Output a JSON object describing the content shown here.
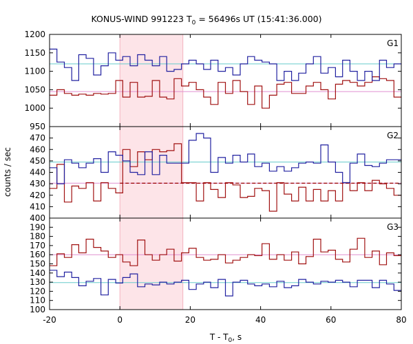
{
  "title": {
    "prefix": "KONUS-WIND 991223 T",
    "sub": "0",
    "suffix": " = 56496s UT (15:41:36.000)"
  },
  "ylabel": "counts / sec",
  "xlabel": {
    "prefix": "T - T",
    "sub": "0",
    "suffix": ", s"
  },
  "colors": {
    "red": "#a01010",
    "blue": "#2020a0",
    "cyan": "#66cccc",
    "pink": "#e08fd0",
    "shade": "#fde4e8",
    "shade_edge": "#f3b3c0"
  },
  "chart_data": {
    "type": "line",
    "x_range": [
      -20,
      80
    ],
    "x_ticks": [
      -20,
      0,
      20,
      40,
      60,
      80
    ],
    "shaded_interval": [
      0,
      17.9
    ],
    "bin_edges": [
      -20.0,
      -17.9,
      -15.8,
      -13.7,
      -11.7,
      -9.6,
      -7.5,
      -5.4,
      -3.3,
      -1.2,
      0.8,
      2.9,
      5.0,
      7.1,
      9.2,
      11.3,
      13.3,
      15.4,
      17.5,
      19.6,
      21.7,
      23.8,
      25.8,
      27.9,
      30.0,
      32.1,
      34.2,
      36.3,
      38.3,
      40.4,
      42.5,
      44.6,
      46.7,
      48.8,
      50.8,
      52.9,
      55.0,
      57.1,
      59.2,
      61.3,
      63.3,
      65.4,
      67.5,
      69.6,
      71.7,
      73.8,
      75.8,
      77.9,
      80.0
    ],
    "panels": [
      {
        "label": "G1",
        "ylim": [
          950,
          1200
        ],
        "y_ticks": [
          950,
          1000,
          1050,
          1100,
          1150,
          1200
        ],
        "series": [
          {
            "color": "red",
            "values": [
              1035,
              1050,
              1040,
              1035,
              1038,
              1035,
              1040,
              1038,
              1040,
              1075,
              1030,
              1070,
              1030,
              1032,
              1075,
              1030,
              1025,
              1080,
              1060,
              1070,
              1050,
              1030,
              1010,
              1070,
              1040,
              1075,
              1045,
              1010,
              1060,
              1000,
              1035,
              1065,
              1070,
              1040,
              1040,
              1060,
              1070,
              1050,
              1025,
              1065,
              1075,
              1070,
              1060,
              1070,
              1085,
              1080,
              1075,
              1030
            ]
          },
          {
            "color": "blue",
            "values": [
              1160,
              1125,
              1110,
              1075,
              1145,
              1135,
              1090,
              1115,
              1150,
              1130,
              1140,
              1115,
              1145,
              1130,
              1115,
              1140,
              1100,
              1105,
              1120,
              1130,
              1120,
              1105,
              1130,
              1100,
              1110,
              1090,
              1120,
              1140,
              1130,
              1125,
              1120,
              1075,
              1100,
              1075,
              1095,
              1120,
              1140,
              1095,
              1110,
              1085,
              1130,
              1100,
              1075,
              1100,
              1075,
              1130,
              1110,
              1120
            ]
          }
        ],
        "hlines": [
          {
            "color": "pink",
            "value": 1045,
            "from": -20,
            "to": 80
          },
          {
            "color": "cyan",
            "value": 1120,
            "from": -20,
            "to": 80
          }
        ]
      },
      {
        "label": "G2",
        "ylim": [
          400,
          480
        ],
        "y_ticks": [
          400,
          410,
          420,
          430,
          440,
          450,
          460,
          470
        ],
        "series": [
          {
            "color": "red",
            "values": [
              426,
              447,
              414,
              428,
              426,
              431,
              415,
              431,
              426,
              422,
              460,
              445,
              458,
              451,
              460,
              458,
              459,
              465,
              431,
              431,
              415,
              431,
              425,
              418,
              431,
              429,
              418,
              419,
              426,
              424,
              406,
              431,
              421,
              415,
              427,
              415,
              425,
              415,
              424,
              415,
              431,
              424,
              431,
              424,
              433,
              430,
              426,
              420
            ]
          },
          {
            "color": "blue",
            "values": [
              444,
              430,
              451,
              448,
              444,
              448,
              452,
              440,
              458,
              455,
              450,
              440,
              438,
              458,
              438,
              455,
              448,
              448,
              448,
              468,
              474,
              470,
              440,
              453,
              448,
              455,
              449,
              456,
              445,
              448,
              441,
              445,
              441,
              444,
              448,
              449,
              448,
              464,
              449,
              440,
              431,
              448,
              456,
              446,
              445,
              448,
              451,
              451
            ]
          }
        ],
        "hlines": [
          {
            "color": "pink",
            "value": 430.5,
            "from": -20,
            "to": 80
          },
          {
            "color": "cyan",
            "value": 449,
            "from": -20,
            "to": 80
          },
          {
            "color": "red",
            "value": 430.5,
            "from": 0,
            "to": 80,
            "dashed": true
          }
        ]
      },
      {
        "label": "G3",
        "ylim": [
          100,
          200
        ],
        "y_ticks": [
          100,
          110,
          120,
          130,
          140,
          150,
          160,
          170,
          180,
          190
        ],
        "series": [
          {
            "color": "red",
            "values": [
              148,
              161,
              157,
              171,
              162,
              177,
              168,
              164,
              157,
              160,
              152,
              148,
              176,
              160,
              154,
              160,
              166,
              153,
              162,
              167,
              157,
              154,
              155,
              160,
              151,
              154,
              157,
              160,
              159,
              172,
              155,
              160,
              154,
              163,
              150,
              158,
              177,
              163,
              165,
              155,
              152,
              166,
              178,
              157,
              164,
              149,
              162,
              159
            ]
          },
          {
            "color": "blue",
            "values": [
              143,
              136,
              141,
              135,
              126,
              131,
              134,
              116,
              133,
              129,
              135,
              139,
              125,
              128,
              127,
              130,
              128,
              130,
              132,
              122,
              128,
              130,
              124,
              133,
              115,
              130,
              132,
              128,
              126,
              128,
              125,
              131,
              124,
              126,
              133,
              130,
              128,
              131,
              130,
              132,
              130,
              125,
              132,
              132,
              124,
              132,
              128,
              121
            ]
          }
        ],
        "hlines": [
          {
            "color": "pink",
            "value": 160,
            "from": -20,
            "to": 80
          },
          {
            "color": "cyan",
            "value": 129.5,
            "from": -20,
            "to": 80
          }
        ]
      }
    ]
  }
}
